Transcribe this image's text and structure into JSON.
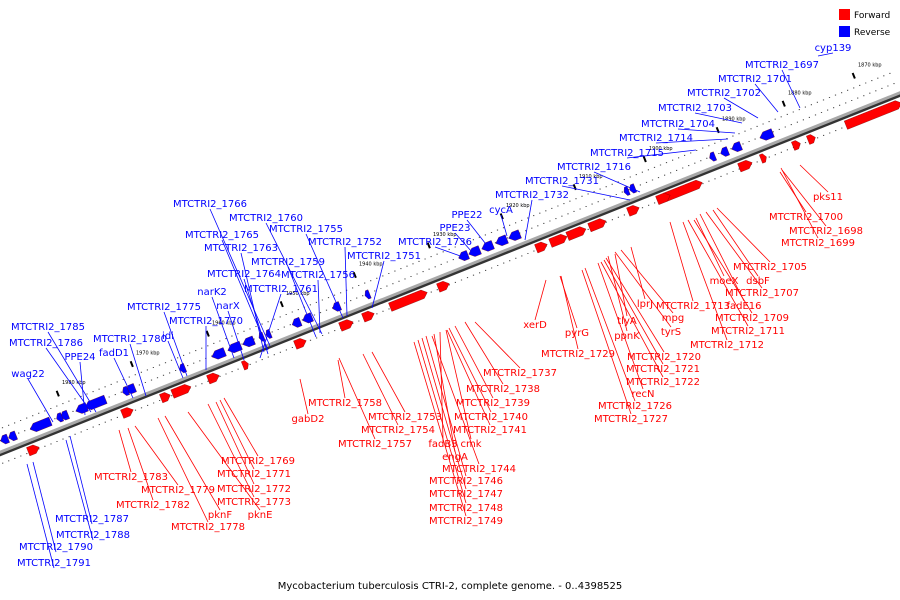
{
  "caption": "Mycobacterium tuberculosis CTRI-2, complete genome. - 0..4398525",
  "legend": {
    "forward_label": "Forward",
    "forward_color": "#ff0000",
    "reverse_label": "Reverse",
    "reverse_color": "#0000ff"
  },
  "kbp_ticks": [
    "1870 kbp",
    "1880 kbp",
    "1890 kbp",
    "1900 kbp",
    "1910 kbp",
    "1920 kbp",
    "1930 kbp",
    "1940 kbp",
    "1950 kbp",
    "1960 kbp",
    "1970 kbp",
    "1980 kbp"
  ],
  "reverse_labels": [
    "cyp139",
    "MTCTRI2_1697",
    "MTCTRI2_1701",
    "MTCTRI2_1702",
    "MTCTRI2_1703",
    "MTCTRI2_1704",
    "MTCTRI2_1714",
    "MTCTRI2_1715",
    "MTCTRI2_1716",
    "MTCTRI2_1731",
    "MTCTRI2_1732",
    "cycA",
    "PPE22",
    "PPE23",
    "MTCTRI2_1736",
    "MTCTRI2_1751",
    "MTCTRI2_1752",
    "MTCTRI2_1755",
    "MTCTRI2_1756",
    "MTCTRI2_1760",
    "MTCTRI2_1759",
    "MTCTRI2_1766",
    "MTCTRI2_1765",
    "MTCTRI2_1763",
    "MTCTRI2_1764",
    "MTCTRI2_1761",
    "narK2",
    "narX",
    "MTCTRI2_1775",
    "MTCTRI2_1770",
    "idi",
    "MTCTRI2_1780",
    "fadD1",
    "MTCTRI2_1785",
    "MTCTRI2_1786",
    "PPE24",
    "wag22",
    "MTCTRI2_1787",
    "MTCTRI2_1788",
    "MTCTRI2_1790",
    "MTCTRI2_1791"
  ],
  "forward_labels": [
    "pks11",
    "MTCTRI2_1700",
    "MTCTRI2_1698",
    "MTCTRI2_1699",
    "MTCTRI2_1705",
    "dsbF",
    "MTCTRI2_1707",
    "fadE16",
    "moeX",
    "MTCTRI2_1709",
    "MTCTRI2_1711",
    "MTCTRI2_1712",
    "MTCTRI2_1713",
    "lprJ",
    "mpg",
    "tyrS",
    "tlyA",
    "ppnK",
    "MTCTRI2_1720",
    "MTCTRI2_1721",
    "MTCTRI2_1722",
    "recN",
    "MTCTRI2_1726",
    "MTCTRI2_1727",
    "xerD",
    "pyrG",
    "MTCTRI2_1729",
    "MTCTRI2_1737",
    "MTCTRI2_1738",
    "MTCTRI2_1739",
    "MTCTRI2_1740",
    "MTCTRI2_1741",
    "cmk",
    "fadB3",
    "engA",
    "MTCTRI2_1744",
    "MTCTRI2_1746",
    "MTCTRI2_1747",
    "MTCTRI2_1748",
    "MTCTRI2_1749",
    "MTCTRI2_1753",
    "MTCTRI2_1754",
    "MTCTRI2_1757",
    "MTCTRI2_1758",
    "gabD2",
    "MTCTRI2_1769",
    "MTCTRI2_1771",
    "MTCTRI2_1772",
    "MTCTRI2_1773",
    "pknE",
    "pknF",
    "MTCTRI2_1778",
    "MTCTRI2_1779",
    "MTCTRI2_1782",
    "MTCTRI2_1783"
  ]
}
